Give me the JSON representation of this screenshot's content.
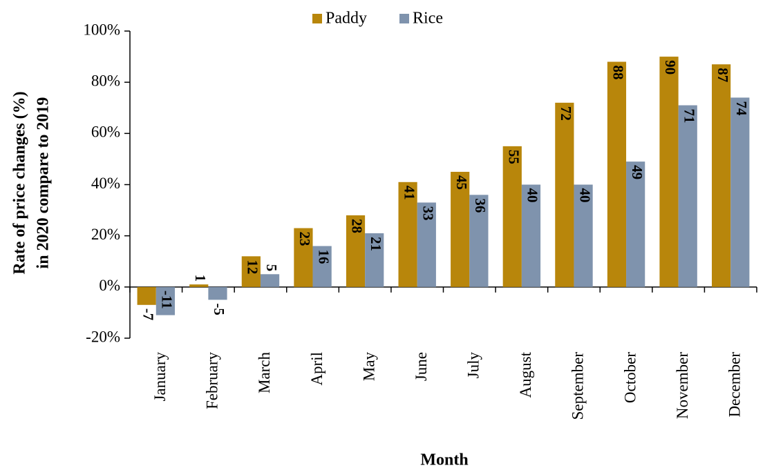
{
  "chart_data": {
    "type": "bar",
    "y_label_lines": [
      "Rate of price changes (%)",
      "in 2020 compare to 2019"
    ],
    "x_label": "Month",
    "categories": [
      "January",
      "February",
      "March",
      "April",
      "May",
      "June",
      "July",
      "August",
      "September",
      "October",
      "November",
      "December"
    ],
    "series": [
      {
        "name": "Paddy",
        "color": "#b8860b",
        "label_color": "#000000",
        "values": [
          -7,
          1,
          12,
          23,
          28,
          41,
          45,
          55,
          72,
          88,
          90,
          87
        ]
      },
      {
        "name": "Rice",
        "color": "#7f93ad",
        "label_color": "#1a1aff",
        "values": [
          -11,
          -5,
          5,
          16,
          21,
          33,
          36,
          40,
          40,
          49,
          71,
          74
        ]
      }
    ],
    "ylim": [
      -20,
      100
    ],
    "yticks": [
      {
        "value": -20,
        "label": "-20%"
      },
      {
        "value": 0,
        "label": "0%"
      },
      {
        "value": 20,
        "label": "20%"
      },
      {
        "value": 40,
        "label": "40%"
      },
      {
        "value": 60,
        "label": "60%"
      },
      {
        "value": 80,
        "label": "80%"
      },
      {
        "value": 100,
        "label": "100%"
      }
    ],
    "legend": "top"
  }
}
